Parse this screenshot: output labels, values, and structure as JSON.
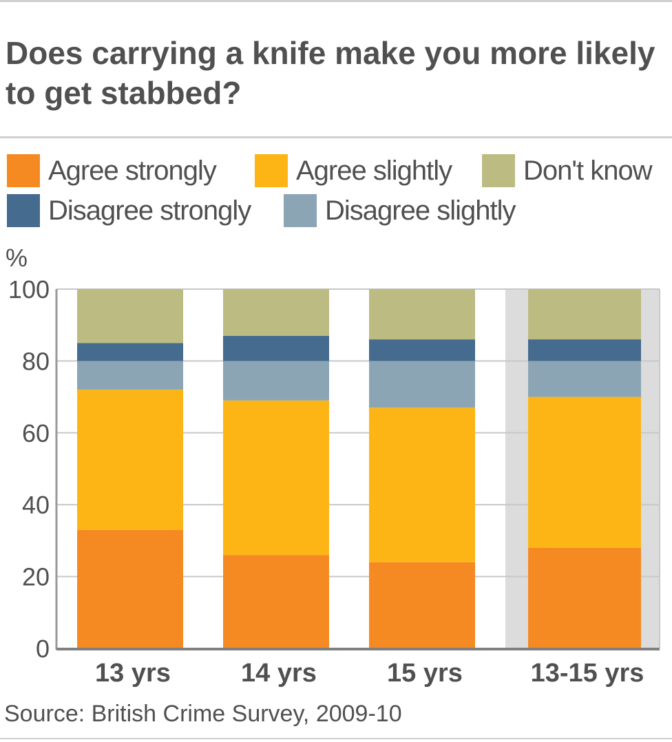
{
  "title": "Does carrying a knife make you more likely to get stabbed?",
  "source": "Source: British Crime Survey, 2009-10",
  "legend": [
    {
      "label": "Agree strongly",
      "color": "#f58a23"
    },
    {
      "label": "Agree slightly",
      "color": "#fcb515"
    },
    {
      "label": "Don't know",
      "color": "#bcbb82"
    },
    {
      "label": "Disagree strongly",
      "color": "#456b8e"
    },
    {
      "label": "Disagree slightly",
      "color": "#8ba5b4"
    }
  ],
  "chart_data": {
    "type": "bar",
    "stacked": true,
    "title": "Does carrying a knife make you more likely to get stabbed?",
    "ylabel": "%",
    "ylim": [
      0,
      100
    ],
    "yticks": [
      0,
      20,
      40,
      60,
      80,
      100
    ],
    "grid": true,
    "legend_position": "top",
    "categories": [
      "13 yrs",
      "14 yrs",
      "15 yrs",
      "13-15 yrs"
    ],
    "highlight_category": "13-15 yrs",
    "stack_order": [
      "Agree strongly",
      "Agree slightly",
      "Disagree slightly",
      "Disagree strongly",
      "Don't know"
    ],
    "series": [
      {
        "name": "Agree strongly",
        "color": "#f58a23",
        "values": [
          33,
          26,
          24,
          28
        ]
      },
      {
        "name": "Agree slightly",
        "color": "#fcb515",
        "values": [
          39,
          43,
          43,
          42
        ]
      },
      {
        "name": "Disagree slightly",
        "color": "#8ba5b4",
        "values": [
          8,
          11,
          13,
          10
        ]
      },
      {
        "name": "Disagree strongly",
        "color": "#456b8e",
        "values": [
          5,
          7,
          6,
          6
        ]
      },
      {
        "name": "Don't know",
        "color": "#bcbb82",
        "values": [
          16,
          13,
          14,
          14
        ]
      }
    ]
  }
}
